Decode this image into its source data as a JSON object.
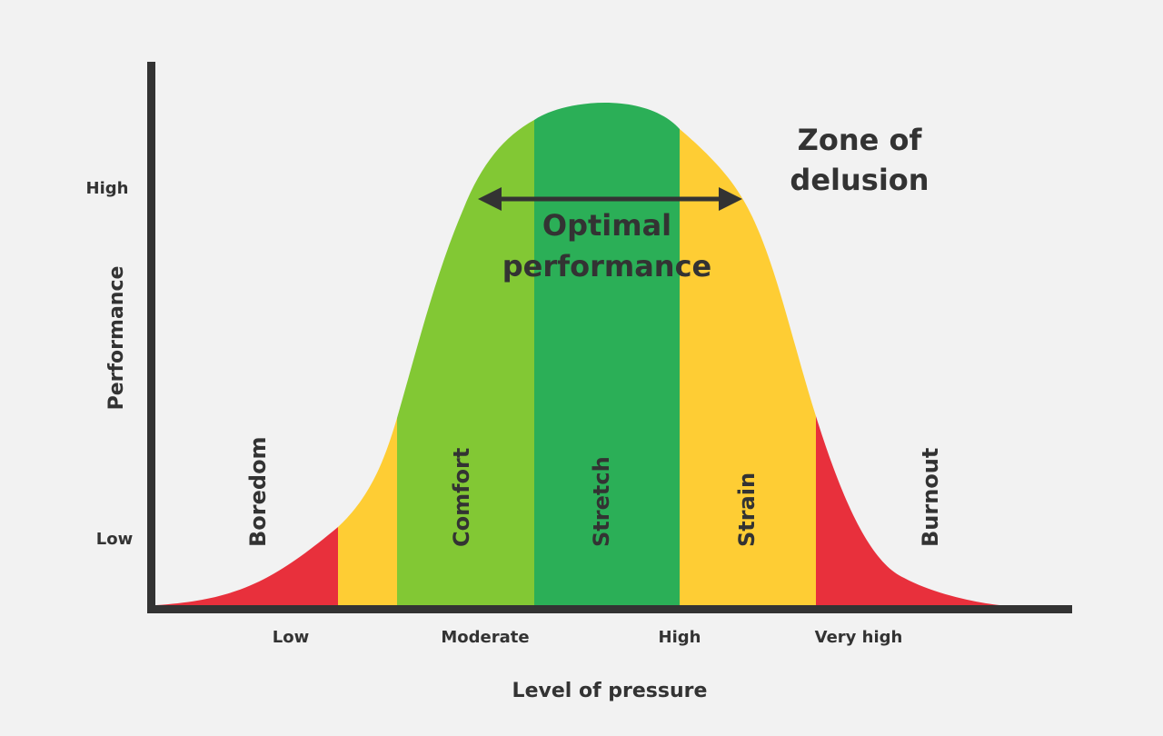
{
  "y_axis": {
    "title": "Performance",
    "ticks": [
      "High",
      "Low"
    ]
  },
  "x_axis": {
    "title": "Level of pressure",
    "ticks": [
      "Low",
      "Moderate",
      "High",
      "Very high"
    ]
  },
  "zones": [
    {
      "label": "Boredom",
      "color": "#e8303c"
    },
    {
      "label": "",
      "color": "#fecd34"
    },
    {
      "label": "Comfort",
      "color": "#82c834"
    },
    {
      "label": "Stretch",
      "color": "#2baf57"
    },
    {
      "label": "Strain",
      "color": "#fecd34"
    },
    {
      "label": "Burnout",
      "color": "#e8303c"
    }
  ],
  "annotations": {
    "optimal_line1": "Optimal",
    "optimal_line2": "performance",
    "delusion_line1": "Zone of",
    "delusion_line2": "delusion"
  },
  "colors": {
    "background": "#f2f2f2",
    "axis": "#333333",
    "text": "#333333"
  }
}
